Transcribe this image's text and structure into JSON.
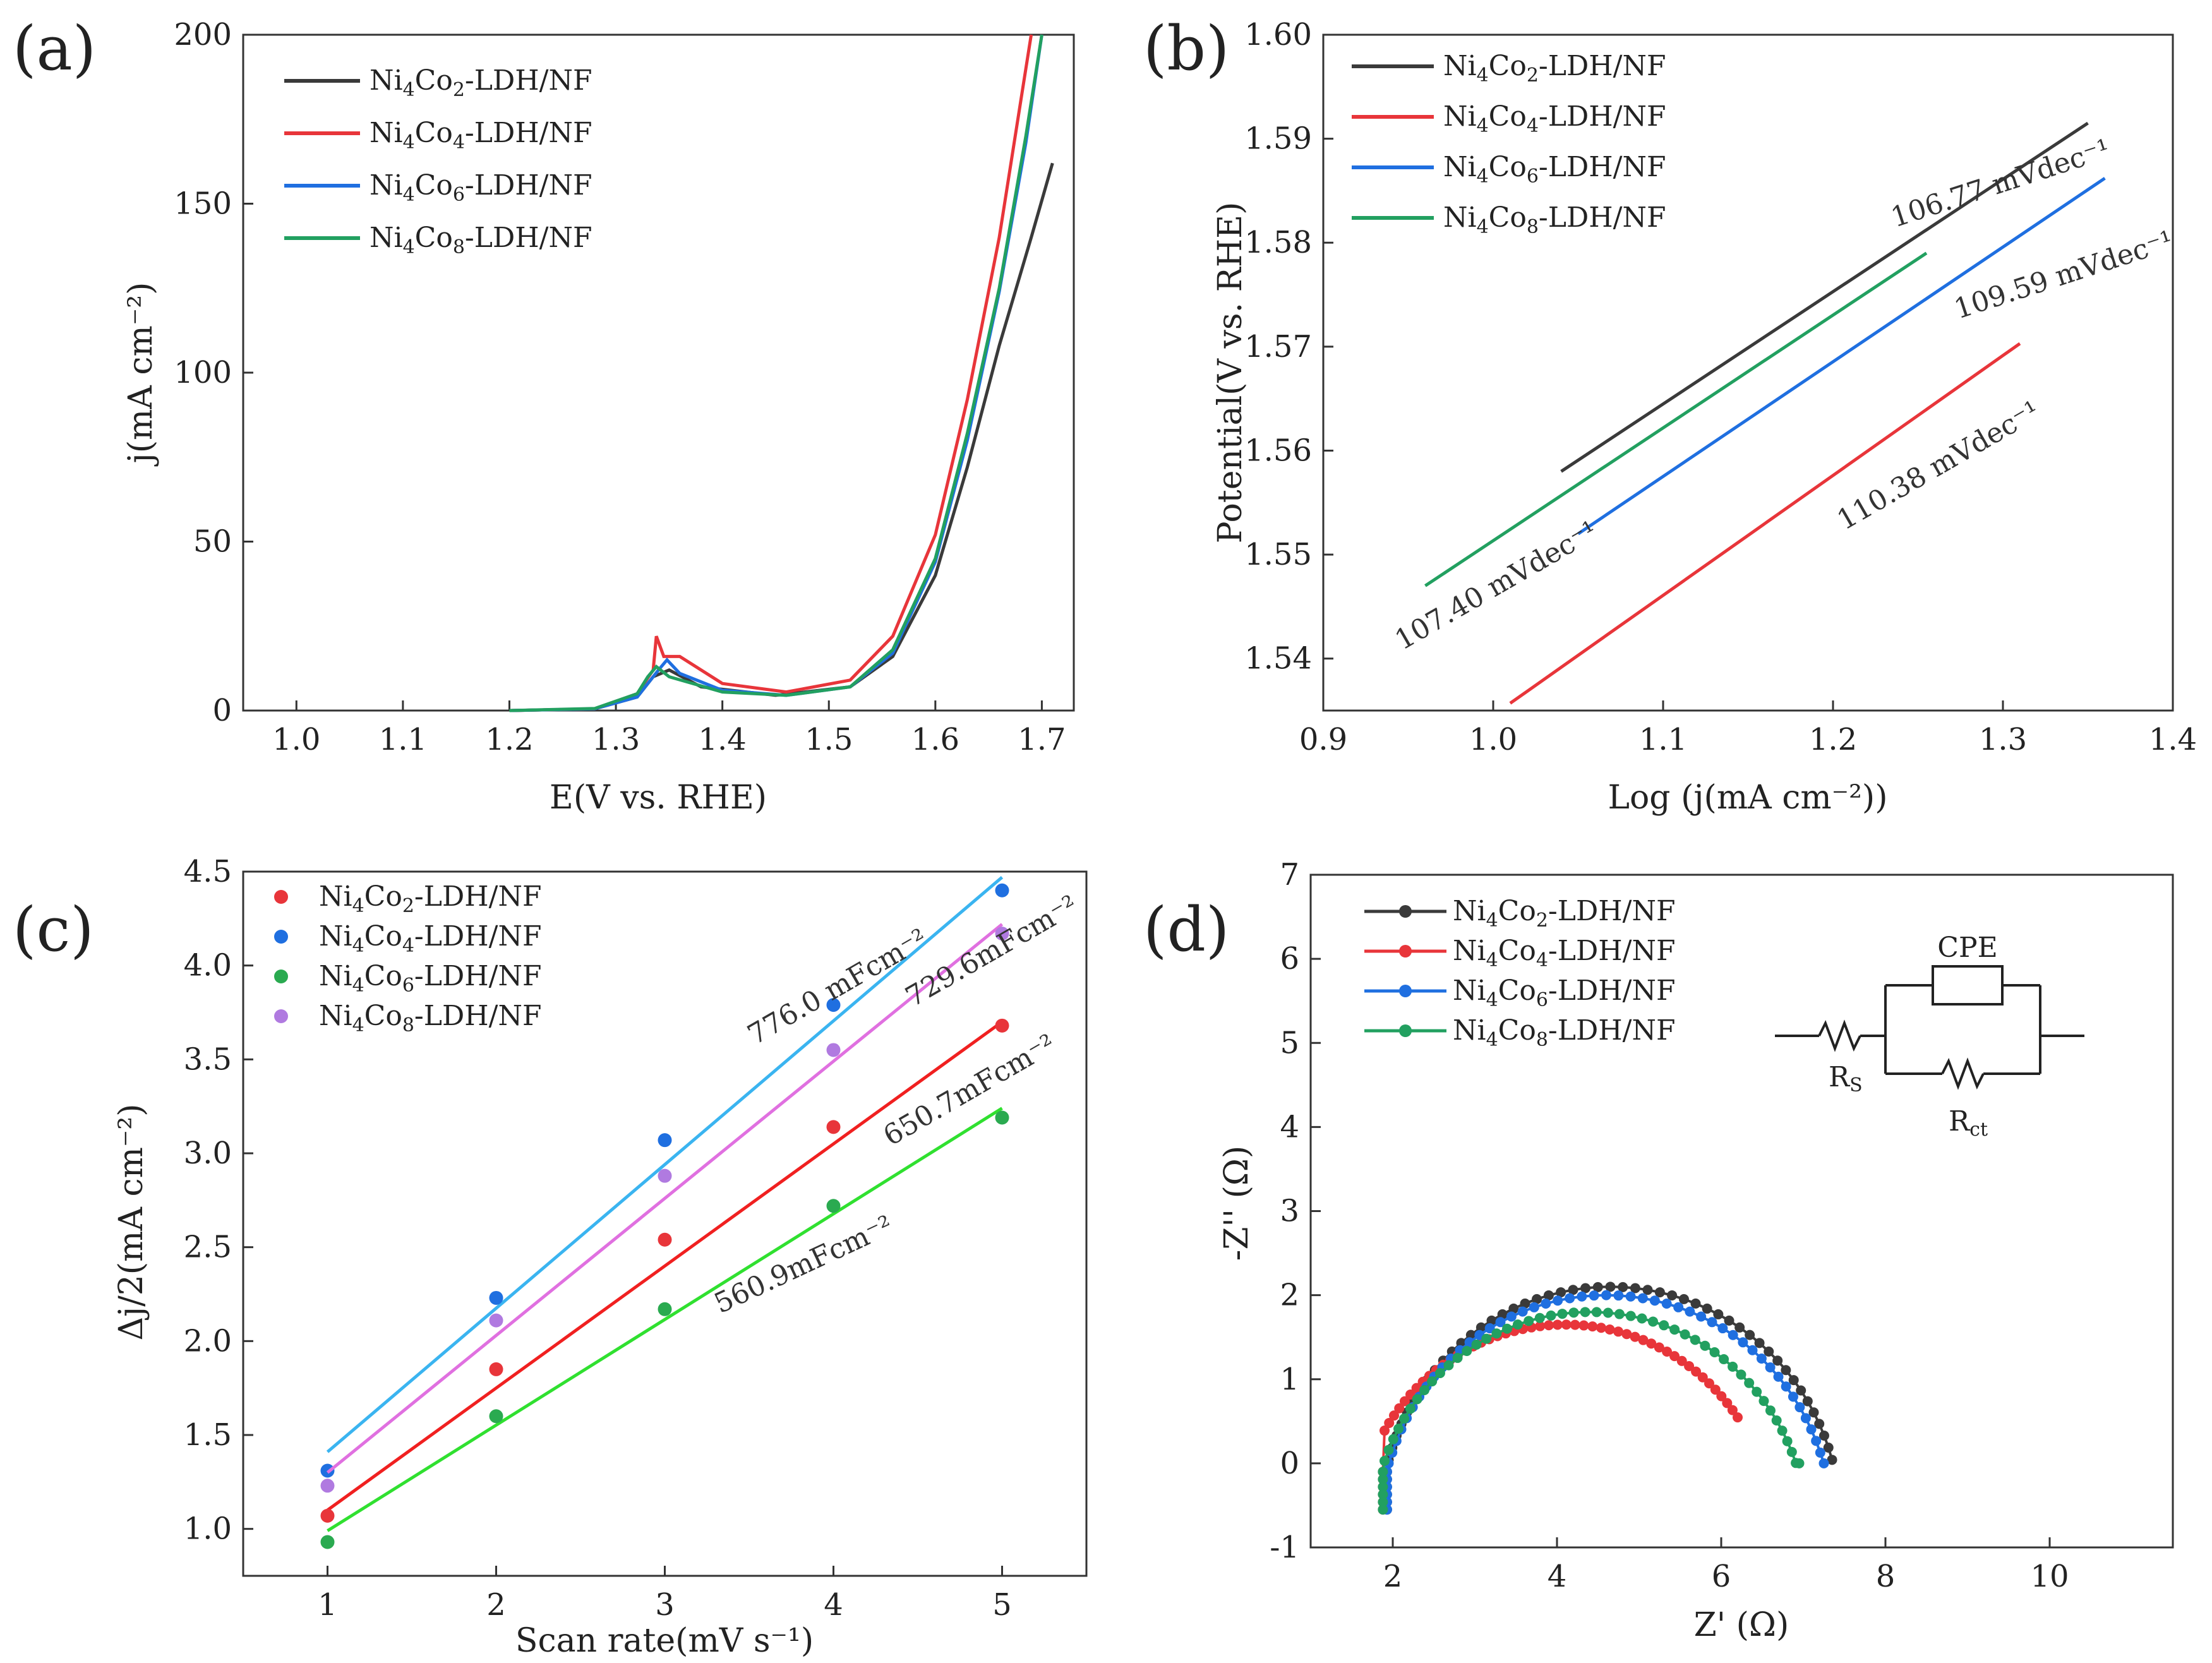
{
  "colors": {
    "black": "#3a3a3a",
    "red": "#e8353a",
    "blue": "#1f6fe0",
    "green": "#22a060",
    "c_red": "#e8353a",
    "c_blue": "#1f6fe0",
    "c_green": "#2aaa50",
    "c_purple": "#b07ae0",
    "fit_red": "#f02020",
    "fit_blue": "#3ab4f0",
    "fit_green": "#30e030",
    "fit_purple": "#e070e0"
  },
  "chart_data": [
    {
      "panel": "(a)",
      "type": "line",
      "xlabel": "E(V vs. RHE)",
      "ylabel": "j(mA cm⁻²)",
      "xlim": [
        0.95,
        1.73
      ],
      "ylim": [
        0,
        200
      ],
      "xticks": [
        "1.0",
        "1.1",
        "1.2",
        "1.3",
        "1.4",
        "1.5",
        "1.6",
        "1.7"
      ],
      "yticks": [
        "0",
        "50",
        "100",
        "150",
        "200"
      ],
      "legend": {
        "position": "top-left"
      },
      "series": [
        {
          "name": "Ni₄Co₂-LDH/NF",
          "color_key": "black",
          "x": [
            1.2,
            1.28,
            1.32,
            1.335,
            1.35,
            1.38,
            1.45,
            1.52,
            1.56,
            1.6,
            1.63,
            1.66,
            1.69,
            1.71
          ],
          "y": [
            0,
            0.5,
            4,
            10,
            12,
            7,
            4.5,
            7,
            16,
            40,
            72,
            108,
            140,
            162
          ]
        },
        {
          "name": "Ni₄Co₄-LDH/NF",
          "color_key": "red",
          "x": [
            1.2,
            1.28,
            1.32,
            1.335,
            1.338,
            1.345,
            1.36,
            1.4,
            1.46,
            1.52,
            1.56,
            1.6,
            1.63,
            1.66,
            1.68,
            1.69
          ],
          "y": [
            0,
            0.5,
            5,
            12,
            22,
            16,
            16,
            8,
            5.5,
            9,
            22,
            52,
            92,
            140,
            180,
            200
          ]
        },
        {
          "name": "Ni₄Co₆-LDH/NF",
          "color_key": "blue",
          "x": [
            1.2,
            1.28,
            1.32,
            1.34,
            1.348,
            1.36,
            1.4,
            1.46,
            1.52,
            1.56,
            1.6,
            1.63,
            1.66,
            1.685,
            1.7
          ],
          "y": [
            0,
            0.5,
            4,
            12,
            15,
            11,
            6,
            4.5,
            7,
            17,
            44,
            80,
            124,
            168,
            200
          ]
        },
        {
          "name": "Ni₄Co₈-LDH/NF",
          "color_key": "green",
          "x": [
            1.2,
            1.28,
            1.32,
            1.33,
            1.338,
            1.35,
            1.4,
            1.46,
            1.52,
            1.56,
            1.6,
            1.63,
            1.66,
            1.685,
            1.7
          ],
          "y": [
            0,
            0.6,
            5,
            10,
            13,
            10,
            5.5,
            4.5,
            7,
            18,
            45,
            82,
            125,
            170,
            200
          ]
        }
      ]
    },
    {
      "panel": "(b)",
      "type": "line",
      "xlabel": "Log (j(mA cm⁻²))",
      "ylabel": "Potential(V vs. RHE)",
      "xlim": [
        0.9,
        1.4
      ],
      "ylim": [
        1.535,
        1.6
      ],
      "xticks": [
        "0.9",
        "1.0",
        "1.1",
        "1.2",
        "1.3",
        "1.4"
      ],
      "yticks": [
        "1.54",
        "1.55",
        "1.56",
        "1.57",
        "1.58",
        "1.59",
        "1.60"
      ],
      "legend": {
        "position": "top-left"
      },
      "series": [
        {
          "name": "Ni₄Co₂-LDH/NF",
          "color_key": "black",
          "x": [
            1.04,
            1.35
          ],
          "y": [
            1.558,
            1.5915
          ]
        },
        {
          "name": "Ni₄Co₄-LDH/NF",
          "color_key": "red",
          "x": [
            1.01,
            1.31
          ],
          "y": [
            1.5357,
            1.5703
          ]
        },
        {
          "name": "Ni₄Co₆-LDH/NF",
          "color_key": "blue",
          "x": [
            1.05,
            1.36
          ],
          "y": [
            1.552,
            1.5862
          ]
        },
        {
          "name": "Ni₄Co₈-LDH/NF",
          "color_key": "green",
          "x": [
            0.96,
            1.255
          ],
          "y": [
            1.547,
            1.579
          ]
        }
      ],
      "annotations": [
        {
          "text": "106.77 mVdec⁻¹",
          "color_key": "black"
        },
        {
          "text": "109.59 mVdec⁻¹",
          "color_key": "blue"
        },
        {
          "text": "110.38 mVdec⁻¹",
          "color_key": "red"
        },
        {
          "text": "107.40 mVdec⁻¹",
          "color_key": "green"
        }
      ]
    },
    {
      "panel": "(c)",
      "type": "scatter",
      "xlabel": "Scan rate(mV s⁻¹)",
      "ylabel": "Δj/2(mA cm⁻²)",
      "xlim": [
        0.5,
        5.5
      ],
      "ylim": [
        0.75,
        4.5
      ],
      "xticks": [
        "1",
        "2",
        "3",
        "4",
        "5"
      ],
      "yticks": [
        "1.0",
        "1.5",
        "2.0",
        "2.5",
        "3.0",
        "3.5",
        "4.0",
        "4.5"
      ],
      "legend": {
        "position": "top-left"
      },
      "series": [
        {
          "name": "Ni₄Co₂-LDH/NF",
          "color_key": "c_red",
          "fit_key": "fit_red",
          "x": [
            1,
            2,
            3,
            4,
            5
          ],
          "y": [
            1.07,
            1.85,
            2.54,
            3.14,
            3.68
          ],
          "fit": [
            1.1,
            3.7
          ]
        },
        {
          "name": "Ni₄Co₄-LDH/NF",
          "color_key": "c_blue",
          "fit_key": "fit_blue",
          "x": [
            1,
            2,
            3,
            4,
            5
          ],
          "y": [
            1.31,
            2.23,
            3.07,
            3.79,
            4.4
          ],
          "fit": [
            1.41,
            4.47
          ]
        },
        {
          "name": "Ni₄Co₆-LDH/NF",
          "color_key": "c_green",
          "fit_key": "fit_green",
          "x": [
            1,
            2,
            3,
            4,
            5
          ],
          "y": [
            0.93,
            1.6,
            2.17,
            2.72,
            3.19
          ],
          "fit": [
            0.99,
            3.24
          ]
        },
        {
          "name": "Ni₄Co₈-LDH/NF",
          "color_key": "c_purple",
          "fit_key": "fit_purple",
          "x": [
            1,
            2,
            3,
            4,
            5
          ],
          "y": [
            1.23,
            2.11,
            2.88,
            3.55,
            4.17
          ],
          "fit": [
            1.3,
            4.22
          ]
        }
      ],
      "annotations": [
        {
          "text": "776.0 mFcm⁻²"
        },
        {
          "text": "729.6mFcm⁻²"
        },
        {
          "text": "650.7mFcm⁻²"
        },
        {
          "text": "560.9mFcm⁻²"
        }
      ]
    },
    {
      "panel": "(d)",
      "type": "line",
      "xlabel": "Z' (Ω)",
      "ylabel": "-Z'' (Ω)",
      "xlim": [
        1,
        11.5
      ],
      "ylim": [
        -1,
        7
      ],
      "xticks": [
        "2",
        "4",
        "6",
        "8",
        "10"
      ],
      "yticks": [
        "-1",
        "0",
        "1",
        "2",
        "3",
        "4",
        "5",
        "6",
        "7"
      ],
      "legend": {
        "position": "top-left"
      },
      "series": [
        {
          "name": "Ni₄Co₂-LDH/NF",
          "color_key": "black",
          "center": [
            4.65,
            -0.7
          ],
          "radius": 2.8,
          "start": 1.95,
          "end": 7.35
        },
        {
          "name": "Ni₄Co₄-LDH/NF",
          "color_key": "red",
          "center": [
            4.1,
            -0.9
          ],
          "radius": 2.55,
          "start": 1.9,
          "end": 6.2
        },
        {
          "name": "Ni₄Co₆-LDH/NF",
          "color_key": "blue",
          "center": [
            4.6,
            -0.75
          ],
          "radius": 2.75,
          "start": 1.95,
          "end": 7.25
        },
        {
          "name": "Ni₄Co₈-LDH/NF",
          "color_key": "green",
          "center": [
            4.4,
            -0.85
          ],
          "radius": 2.65,
          "start": 1.9,
          "end": 6.95
        }
      ],
      "circuit": {
        "cpe": "CPE",
        "rs": "R",
        "rs_sub": "S",
        "rct": "R",
        "rct_sub": "ct"
      }
    }
  ]
}
